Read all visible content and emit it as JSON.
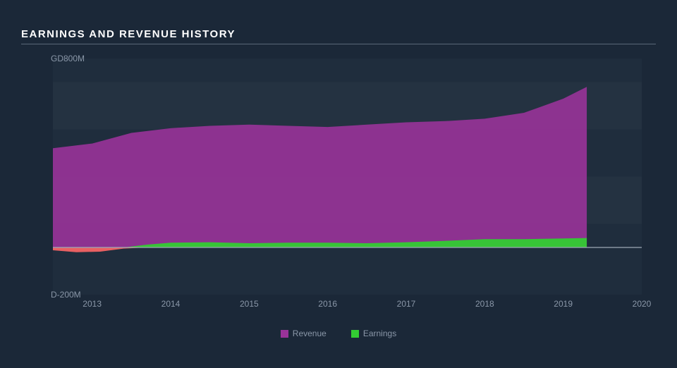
{
  "title": "EARNINGS AND REVENUE HISTORY",
  "chart": {
    "type": "area",
    "background_color": "#1b2838",
    "plot_background": "#1f2d3d",
    "grid_band_color": "#283645",
    "axis_text_color": "#8a97a8",
    "baseline_color": "#9da8b5",
    "title_color": "#ffffff",
    "ylim": [
      -200,
      800
    ],
    "yticks": [
      {
        "v": 800,
        "label": "GD800M"
      },
      {
        "v": -200,
        "label": "D-200M"
      }
    ],
    "xlim": [
      2012.5,
      2020
    ],
    "xticks": [
      2013,
      2014,
      2015,
      2016,
      2017,
      2018,
      2019,
      2020
    ],
    "series": [
      {
        "name": "Revenue",
        "color": "#993399",
        "color_alt": "#b84d8f",
        "points": [
          {
            "x": 2012.5,
            "y": 420
          },
          {
            "x": 2013.0,
            "y": 440
          },
          {
            "x": 2013.5,
            "y": 485
          },
          {
            "x": 2014.0,
            "y": 505
          },
          {
            "x": 2014.5,
            "y": 515
          },
          {
            "x": 2015.0,
            "y": 520
          },
          {
            "x": 2015.5,
            "y": 515
          },
          {
            "x": 2016.0,
            "y": 510
          },
          {
            "x": 2016.5,
            "y": 520
          },
          {
            "x": 2017.0,
            "y": 530
          },
          {
            "x": 2017.5,
            "y": 535
          },
          {
            "x": 2018.0,
            "y": 545
          },
          {
            "x": 2018.5,
            "y": 570
          },
          {
            "x": 2019.0,
            "y": 630
          },
          {
            "x": 2019.3,
            "y": 680
          }
        ],
        "end_x": 2019.3
      },
      {
        "name": "Earnings",
        "color": "#33cc33",
        "neg_color": "#ff6666",
        "points": [
          {
            "x": 2012.5,
            "y": -12
          },
          {
            "x": 2012.8,
            "y": -20
          },
          {
            "x": 2013.1,
            "y": -18
          },
          {
            "x": 2013.4,
            "y": -5
          },
          {
            "x": 2013.7,
            "y": 12
          },
          {
            "x": 2014.0,
            "y": 20
          },
          {
            "x": 2014.5,
            "y": 22
          },
          {
            "x": 2015.0,
            "y": 18
          },
          {
            "x": 2015.5,
            "y": 20
          },
          {
            "x": 2016.0,
            "y": 20
          },
          {
            "x": 2016.5,
            "y": 18
          },
          {
            "x": 2017.0,
            "y": 22
          },
          {
            "x": 2017.5,
            "y": 28
          },
          {
            "x": 2018.0,
            "y": 35
          },
          {
            "x": 2018.5,
            "y": 35
          },
          {
            "x": 2019.0,
            "y": 38
          },
          {
            "x": 2019.3,
            "y": 40
          }
        ],
        "end_x": 2019.3
      }
    ],
    "legend": [
      {
        "label": "Revenue",
        "color": "#993399"
      },
      {
        "label": "Earnings",
        "color": "#33cc33"
      }
    ]
  }
}
